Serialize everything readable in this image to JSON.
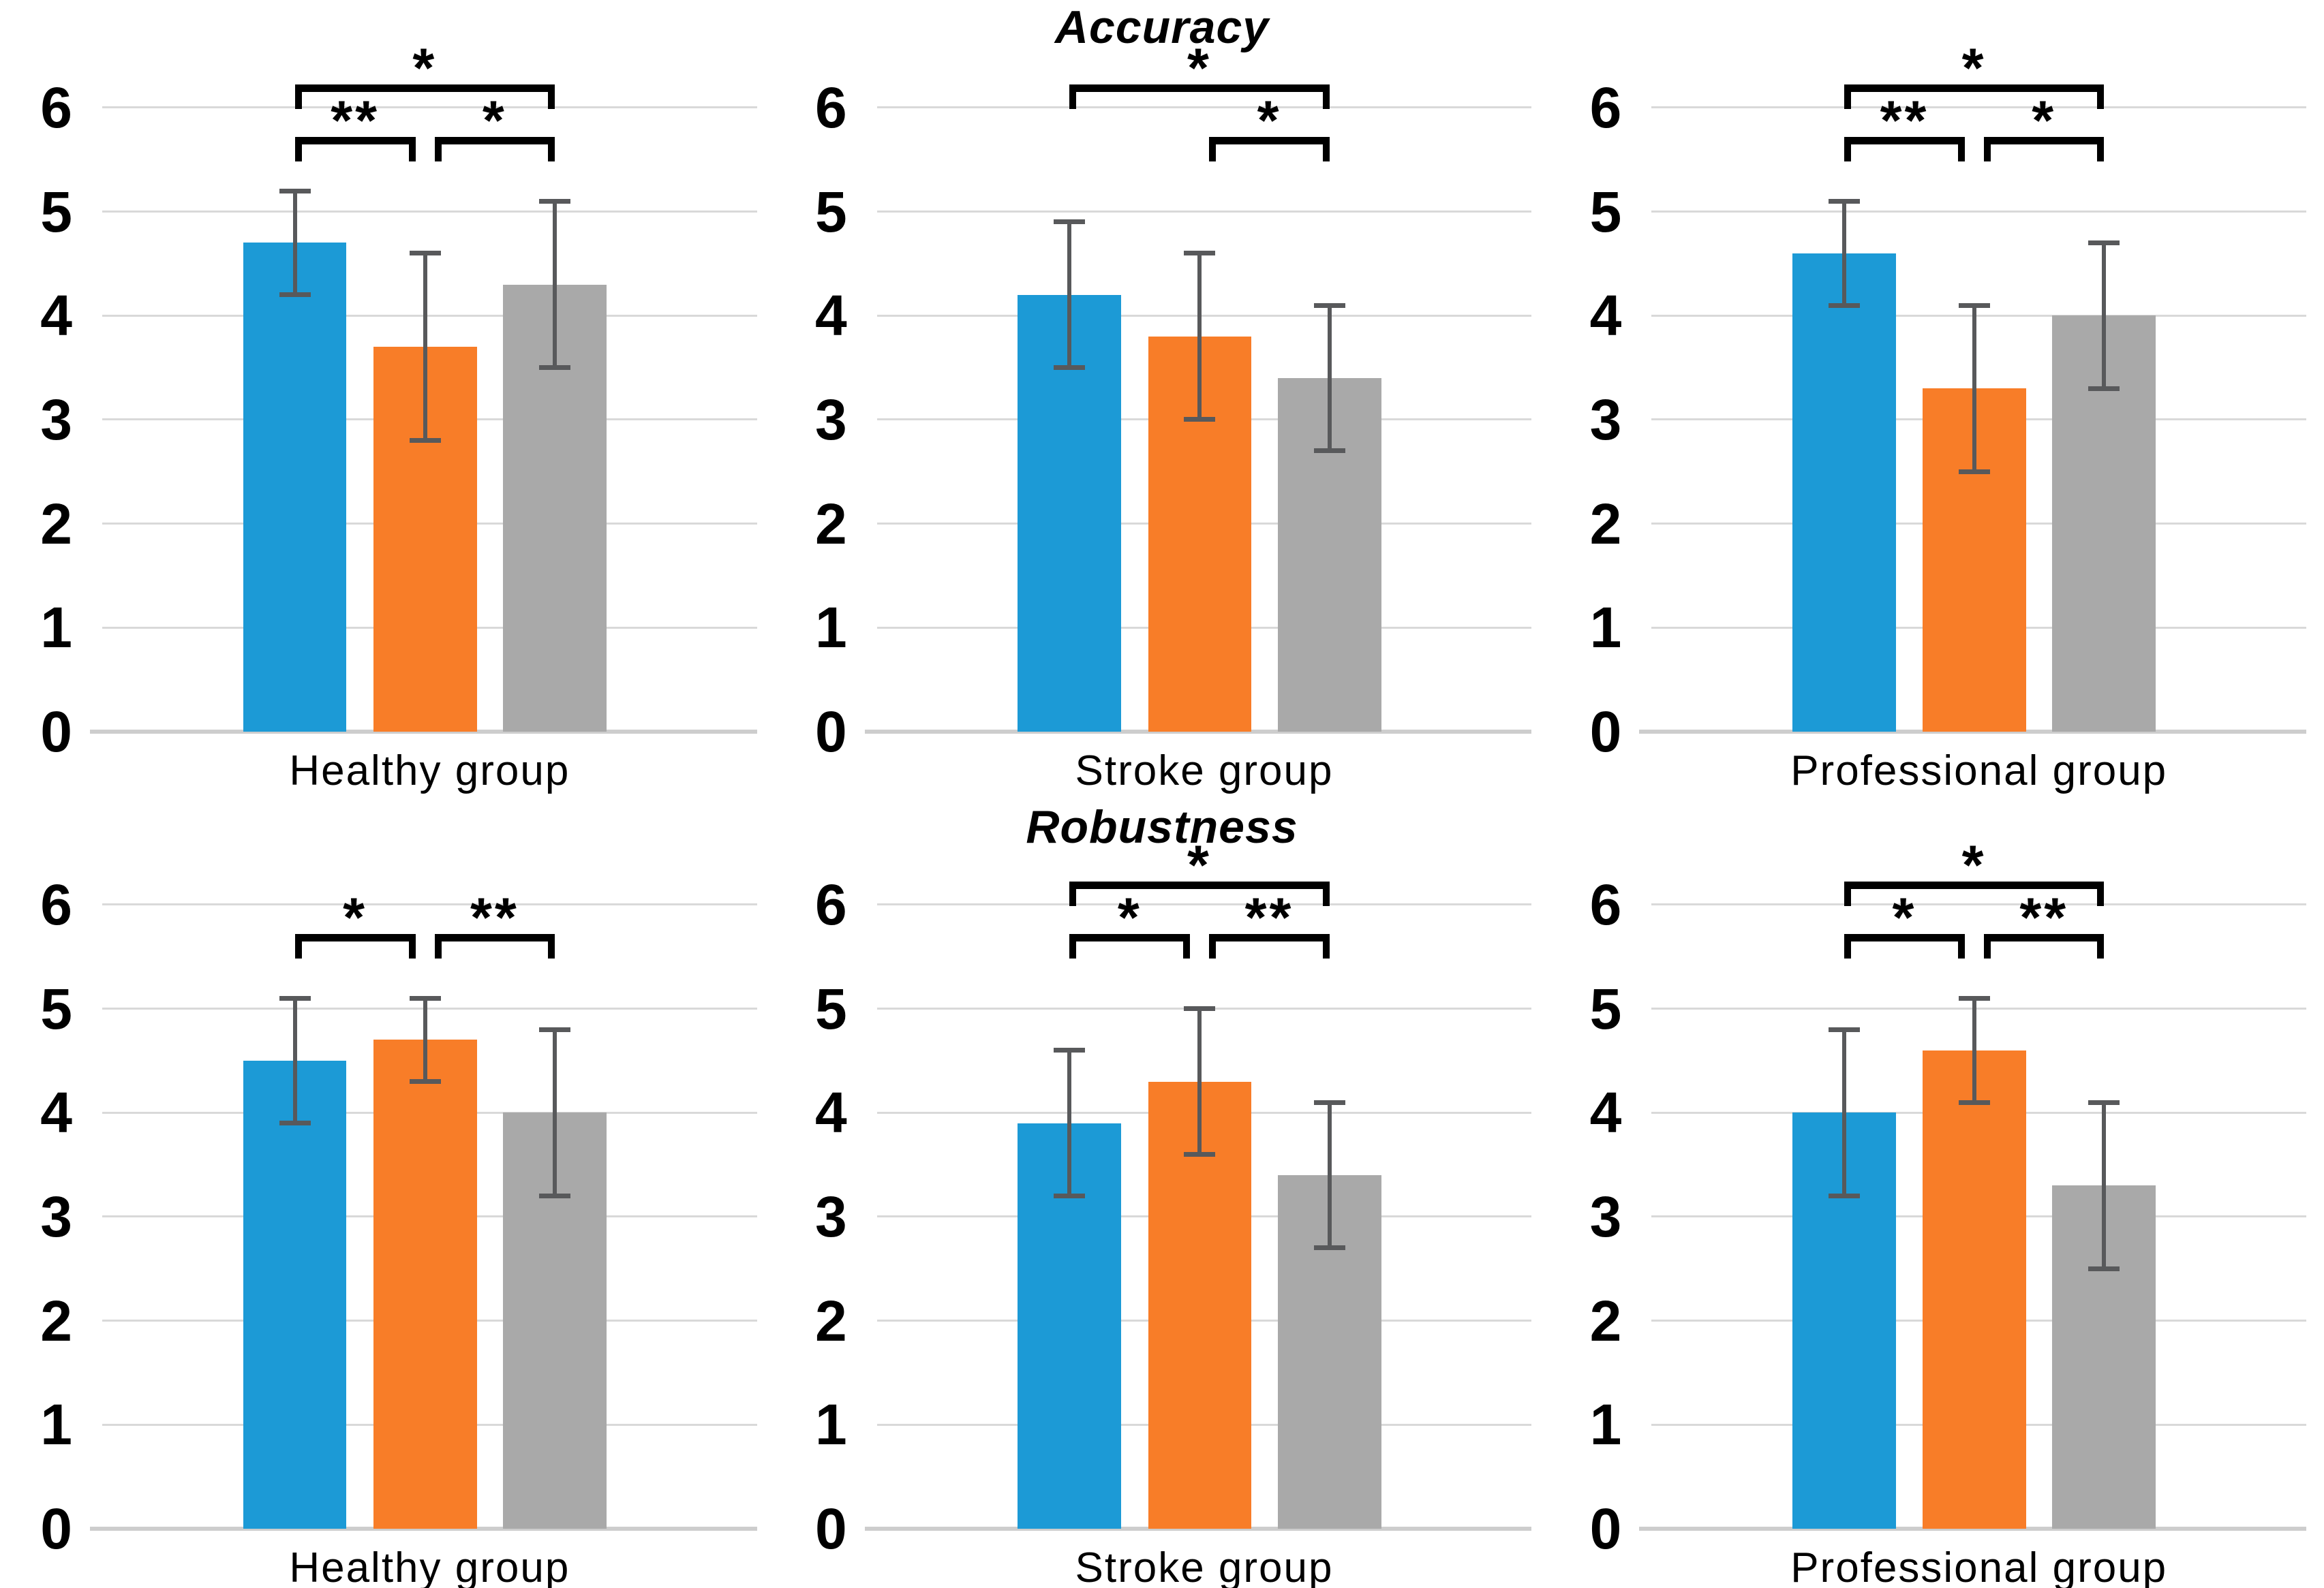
{
  "palette": {
    "series_colors": {
      "blue": "#1C9AD6",
      "orange": "#F87D28",
      "gray": "#A9A9A9"
    },
    "error_bar": "#58595B",
    "gridline": "#D9D9D9",
    "axis_line": "#CDCDCD",
    "bracket": "#000000",
    "text": "#000000",
    "background": "#FFFFFF"
  },
  "row_titles": [
    {
      "label": "Accuracy"
    },
    {
      "label": "Robustness"
    }
  ],
  "chart_data": [
    {
      "type": "bar",
      "row_title": "Accuracy",
      "x_category": "Healthy group",
      "ylim": [
        0,
        6
      ],
      "yticks": [
        0,
        1,
        2,
        3,
        4,
        5,
        6
      ],
      "grid": true,
      "legend": "none",
      "bars": [
        {
          "series": "blue",
          "value": 4.7,
          "error_low": 4.2,
          "error_high": 5.2
        },
        {
          "series": "orange",
          "value": 3.7,
          "error_low": 2.8,
          "error_high": 4.6
        },
        {
          "series": "gray",
          "value": 4.3,
          "error_low": 3.5,
          "error_high": 5.1
        }
      ],
      "significance_brackets": [
        {
          "between": [
            0,
            2
          ],
          "label": "*",
          "level": "upper"
        },
        {
          "between": [
            0,
            1
          ],
          "label": "**",
          "level": "lower"
        },
        {
          "between": [
            1,
            2
          ],
          "label": "*",
          "level": "lower"
        }
      ]
    },
    {
      "type": "bar",
      "row_title": "Accuracy",
      "x_category": "Stroke group",
      "ylim": [
        0,
        6
      ],
      "yticks": [
        0,
        1,
        2,
        3,
        4,
        5,
        6
      ],
      "grid": true,
      "legend": "none",
      "bars": [
        {
          "series": "blue",
          "value": 4.2,
          "error_low": 3.5,
          "error_high": 4.9
        },
        {
          "series": "orange",
          "value": 3.8,
          "error_low": 3.0,
          "error_high": 4.6
        },
        {
          "series": "gray",
          "value": 3.4,
          "error_low": 2.7,
          "error_high": 4.1
        }
      ],
      "significance_brackets": [
        {
          "between": [
            0,
            2
          ],
          "label": "*",
          "level": "upper"
        },
        {
          "between": [
            1,
            2
          ],
          "label": "*",
          "level": "lower"
        }
      ]
    },
    {
      "type": "bar",
      "row_title": "Accuracy",
      "x_category": "Professional group",
      "ylim": [
        0,
        6
      ],
      "yticks": [
        0,
        1,
        2,
        3,
        4,
        5,
        6
      ],
      "grid": true,
      "legend": "none",
      "bars": [
        {
          "series": "blue",
          "value": 4.6,
          "error_low": 4.1,
          "error_high": 5.1
        },
        {
          "series": "orange",
          "value": 3.3,
          "error_low": 2.5,
          "error_high": 4.1
        },
        {
          "series": "gray",
          "value": 4.0,
          "error_low": 3.3,
          "error_high": 4.7
        }
      ],
      "significance_brackets": [
        {
          "between": [
            0,
            2
          ],
          "label": "*",
          "level": "upper"
        },
        {
          "between": [
            0,
            1
          ],
          "label": "**",
          "level": "lower"
        },
        {
          "between": [
            1,
            2
          ],
          "label": "*",
          "level": "lower"
        }
      ]
    },
    {
      "type": "bar",
      "row_title": "Robustness",
      "x_category": "Healthy group",
      "ylim": [
        0,
        6
      ],
      "yticks": [
        0,
        1,
        2,
        3,
        4,
        5,
        6
      ],
      "grid": true,
      "legend": "none",
      "bars": [
        {
          "series": "blue",
          "value": 4.5,
          "error_low": 3.9,
          "error_high": 5.1
        },
        {
          "series": "orange",
          "value": 4.7,
          "error_low": 4.3,
          "error_high": 5.1
        },
        {
          "series": "gray",
          "value": 4.0,
          "error_low": 3.2,
          "error_high": 4.8
        }
      ],
      "significance_brackets": [
        {
          "between": [
            0,
            1
          ],
          "label": "*",
          "level": "lower"
        },
        {
          "between": [
            1,
            2
          ],
          "label": "**",
          "level": "lower"
        }
      ]
    },
    {
      "type": "bar",
      "row_title": "Robustness",
      "x_category": "Stroke group",
      "ylim": [
        0,
        6
      ],
      "yticks": [
        0,
        1,
        2,
        3,
        4,
        5,
        6
      ],
      "grid": true,
      "legend": "none",
      "bars": [
        {
          "series": "blue",
          "value": 3.9,
          "error_low": 3.2,
          "error_high": 4.6
        },
        {
          "series": "orange",
          "value": 4.3,
          "error_low": 3.6,
          "error_high": 5.0
        },
        {
          "series": "gray",
          "value": 3.4,
          "error_low": 2.7,
          "error_high": 4.1
        }
      ],
      "significance_brackets": [
        {
          "between": [
            0,
            2
          ],
          "label": "*",
          "level": "upper"
        },
        {
          "between": [
            0,
            1
          ],
          "label": "*",
          "level": "lower"
        },
        {
          "between": [
            1,
            2
          ],
          "label": "**",
          "level": "lower"
        }
      ]
    },
    {
      "type": "bar",
      "row_title": "Robustness",
      "x_category": "Professional group",
      "ylim": [
        0,
        6
      ],
      "yticks": [
        0,
        1,
        2,
        3,
        4,
        5,
        6
      ],
      "grid": true,
      "legend": "none",
      "bars": [
        {
          "series": "blue",
          "value": 4.0,
          "error_low": 3.2,
          "error_high": 4.8
        },
        {
          "series": "orange",
          "value": 4.6,
          "error_low": 4.1,
          "error_high": 5.1
        },
        {
          "series": "gray",
          "value": 3.3,
          "error_low": 2.5,
          "error_high": 4.1
        }
      ],
      "significance_brackets": [
        {
          "between": [
            0,
            2
          ],
          "label": "*",
          "level": "upper"
        },
        {
          "between": [
            0,
            1
          ],
          "label": "*",
          "level": "lower"
        },
        {
          "between": [
            1,
            2
          ],
          "label": "**",
          "level": "lower"
        }
      ]
    }
  ]
}
